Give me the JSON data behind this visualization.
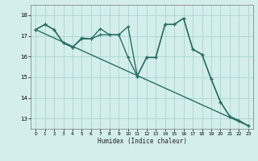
{
  "xlabel": "Humidex (Indice chaleur)",
  "background_color": "#d4eeec",
  "grid_color": "#aed8d5",
  "line_color": "#2a6e62",
  "xlim": [
    -0.5,
    23.5
  ],
  "ylim": [
    12.5,
    18.5
  ],
  "yticks": [
    13,
    14,
    15,
    16,
    17,
    18
  ],
  "xticks": [
    0,
    1,
    2,
    3,
    4,
    5,
    6,
    7,
    8,
    9,
    10,
    11,
    12,
    13,
    14,
    15,
    16,
    17,
    18,
    19,
    20,
    21,
    22,
    23
  ],
  "trend_x": [
    0,
    23
  ],
  "trend_y": [
    17.3,
    12.65
  ],
  "line1_x": [
    0,
    1,
    2,
    3,
    4,
    5,
    6,
    7,
    8,
    9,
    10,
    11,
    12,
    13,
    14,
    15,
    16,
    17,
    18,
    19,
    20,
    21,
    22,
    23
  ],
  "line1_y": [
    17.3,
    17.55,
    17.3,
    16.65,
    16.45,
    16.9,
    16.85,
    17.35,
    17.05,
    17.05,
    17.45,
    15.05,
    15.95,
    15.95,
    17.55,
    17.55,
    17.85,
    16.35,
    16.1,
    14.9,
    13.8,
    13.1,
    12.9,
    12.65
  ],
  "line2_x": [
    0,
    1,
    2,
    3,
    4,
    5,
    6,
    7,
    8,
    9,
    10,
    11,
    12,
    13,
    14,
    15,
    16,
    17,
    18,
    19,
    20,
    21,
    22,
    23
  ],
  "line2_y": [
    17.3,
    17.55,
    17.3,
    16.65,
    16.45,
    16.85,
    16.85,
    17.05,
    17.05,
    17.05,
    15.95,
    15.05,
    15.95,
    15.95,
    17.55,
    17.55,
    17.85,
    16.35,
    16.1,
    14.9,
    13.8,
    13.1,
    12.9,
    12.65
  ]
}
